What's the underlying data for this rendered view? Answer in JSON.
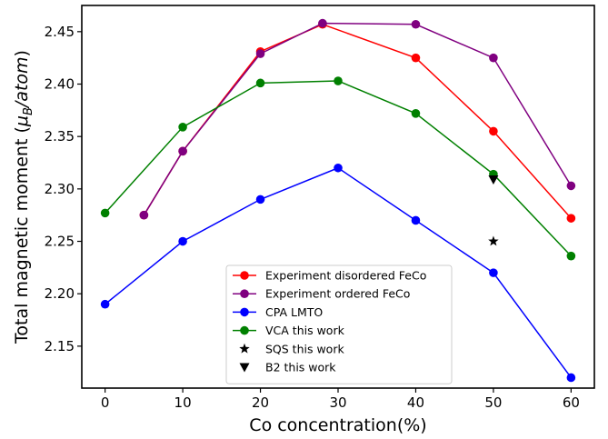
{
  "chart_data": {
    "type": "line",
    "title": "",
    "xlabel": "Co concentration(%)",
    "ylabel": "Total magnetic moment (μB/atom)",
    "ylabel_parts": {
      "pre": "Total magnetic moment (",
      "mu": "μ",
      "sub": "B",
      "unit": "/atom",
      "post": ")"
    },
    "xlim": [
      -3,
      63
    ],
    "ylim": [
      2.11,
      2.475
    ],
    "xticks": [
      0,
      10,
      20,
      30,
      40,
      50,
      60
    ],
    "yticks": [
      2.15,
      2.2,
      2.25,
      2.3,
      2.35,
      2.4,
      2.45
    ],
    "ytick_labels": [
      "2.15",
      "2.20",
      "2.25",
      "2.30",
      "2.35",
      "2.40",
      "2.45"
    ],
    "grid": false,
    "legend_position": "lower-center",
    "series": [
      {
        "name": "Experiment disordered FeCo",
        "color": "#ff0000",
        "marker": "circle",
        "x": [
          5,
          10,
          20,
          28,
          40,
          50,
          60
        ],
        "y": [
          2.275,
          2.336,
          2.431,
          2.457,
          2.425,
          2.355,
          2.272
        ]
      },
      {
        "name": "Experiment ordered FeCo",
        "color": "#800080",
        "marker": "circle",
        "x": [
          5,
          10,
          20,
          28,
          40,
          50,
          60
        ],
        "y": [
          2.275,
          2.336,
          2.429,
          2.458,
          2.457,
          2.425,
          2.303
        ]
      },
      {
        "name": "CPA LMTO",
        "color": "#0000ff",
        "marker": "circle",
        "x": [
          0,
          10,
          20,
          30,
          40,
          50,
          60
        ],
        "y": [
          2.19,
          2.25,
          2.29,
          2.32,
          2.27,
          2.22,
          2.12
        ]
      },
      {
        "name": "VCA this work",
        "color": "#008000",
        "marker": "circle",
        "x": [
          0,
          10,
          20,
          30,
          40,
          50,
          60
        ],
        "y": [
          2.277,
          2.359,
          2.401,
          2.403,
          2.372,
          2.314,
          2.236
        ]
      },
      {
        "name": "SQS this work",
        "color": "#000000",
        "marker": "star",
        "line": false,
        "x": [
          50
        ],
        "y": [
          2.25
        ]
      },
      {
        "name": "B2 this work",
        "color": "#000000",
        "marker": "triangle-down",
        "line": false,
        "x": [
          50
        ],
        "y": [
          2.309
        ]
      }
    ]
  }
}
